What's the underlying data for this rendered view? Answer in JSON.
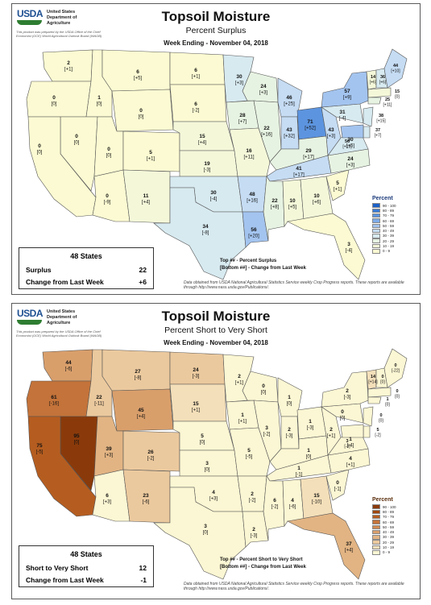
{
  "agency": {
    "logo_text": "USDA",
    "name": "United States\nDepartment of\nAgriculture",
    "prepared_by": "This product was prepared by the USDA Office of the Chief Economist (OCE) World Agricultural Outlook Board (WAOB)"
  },
  "panel_surplus": {
    "title": "Topsoil Moisture",
    "subtitle": "Percent Surplus",
    "week": "Week Ending - November 04, 2018",
    "summary": {
      "heading": "48 States",
      "row1_label": "Surplus",
      "row1_value": "22",
      "row2_label": "Change from Last Week",
      "row2_value": "+6"
    },
    "key_top": "Top ## - Percent Surplus",
    "key_bottom": "[Bottom ##] - Change from Last Week",
    "credit": "Data obtained from USDA National Agricultural Statistics Service weekly Crop Progress reports. These reports are available through http://www.nass.usda.gov/Publications/.",
    "legend_title": "Percent",
    "legend": [
      {
        "label": "90 - 100",
        "color": "#1e62c8"
      },
      {
        "label": "80 - 89",
        "color": "#3a7bd5"
      },
      {
        "label": "70 - 79",
        "color": "#5c94df"
      },
      {
        "label": "60 - 69",
        "color": "#7eabe7"
      },
      {
        "label": "50 - 59",
        "color": "#a3c4ef"
      },
      {
        "label": "40 - 49",
        "color": "#c5dcf3"
      },
      {
        "label": "30 - 39",
        "color": "#d7eaf0"
      },
      {
        "label": "20 - 29",
        "color": "#e7f3e2"
      },
      {
        "label": "10 - 19",
        "color": "#f4f8d9"
      },
      {
        "label": "0 - 9",
        "color": "#fbfad2"
      }
    ],
    "states": [
      {
        "id": "WA",
        "v": "2",
        "c": "[+1]"
      },
      {
        "id": "OR",
        "v": "0",
        "c": "[0]"
      },
      {
        "id": "ID",
        "v": "1",
        "c": "[0]"
      },
      {
        "id": "MT",
        "v": "6",
        "c": "[+5]"
      },
      {
        "id": "ND",
        "v": "6",
        "c": "[+1]"
      },
      {
        "id": "SD",
        "v": "6",
        "c": "[-2]"
      },
      {
        "id": "WY",
        "v": "0",
        "c": "[0]"
      },
      {
        "id": "NV",
        "v": "0",
        "c": "[0]"
      },
      {
        "id": "CA",
        "v": "0",
        "c": "[0]"
      },
      {
        "id": "UT",
        "v": "0",
        "c": "[0]"
      },
      {
        "id": "CO",
        "v": "5",
        "c": "[+1]"
      },
      {
        "id": "AZ",
        "v": "0",
        "c": "[-9]"
      },
      {
        "id": "NM",
        "v": "11",
        "c": "[+4]"
      },
      {
        "id": "NE",
        "v": "15",
        "c": "[+4]"
      },
      {
        "id": "KS",
        "v": "19",
        "c": "[-3]"
      },
      {
        "id": "OK",
        "v": "30",
        "c": "[-4]"
      },
      {
        "id": "TX",
        "v": "34",
        "c": "[-8]"
      },
      {
        "id": "MN",
        "v": "30",
        "c": "[+3]"
      },
      {
        "id": "IA",
        "v": "28",
        "c": "[+7]"
      },
      {
        "id": "MO",
        "v": "16",
        "c": "[+11]"
      },
      {
        "id": "AR",
        "v": "48",
        "c": "[+16]"
      },
      {
        "id": "LA",
        "v": "56",
        "c": "[+20]"
      },
      {
        "id": "WI",
        "v": "24",
        "c": "[+3]"
      },
      {
        "id": "IL",
        "v": "22",
        "c": "[+16]"
      },
      {
        "id": "MI",
        "v": "46",
        "c": "[+25]"
      },
      {
        "id": "IN",
        "v": "43",
        "c": "[+32]"
      },
      {
        "id": "OH",
        "v": "71",
        "c": "[+52]"
      },
      {
        "id": "KY",
        "v": "29",
        "c": "[+17]"
      },
      {
        "id": "TN",
        "v": "41",
        "c": "[+17]"
      },
      {
        "id": "MS",
        "v": "22",
        "c": "[+8]"
      },
      {
        "id": "AL",
        "v": "10",
        "c": "[+5]"
      },
      {
        "id": "GA",
        "v": "10",
        "c": "[+6]"
      },
      {
        "id": "FL",
        "v": "3",
        "c": "[-4]"
      },
      {
        "id": "SC",
        "v": "5",
        "c": "[+1]"
      },
      {
        "id": "NC",
        "v": "24",
        "c": "[+3]"
      },
      {
        "id": "VA",
        "v": "30",
        "c": "[+5]"
      },
      {
        "id": "WV",
        "v": "43",
        "c": "[+3]"
      },
      {
        "id": "PA",
        "v": "31",
        "c": "[-4]"
      },
      {
        "id": "NY",
        "v": "57",
        "c": "[+9]"
      },
      {
        "id": "VT",
        "v": "14",
        "c": "[+6]"
      },
      {
        "id": "NH",
        "v": "36",
        "c": "[+6]"
      },
      {
        "id": "ME",
        "v": "44",
        "c": "[+10]"
      },
      {
        "id": "MA",
        "v": "15",
        "c": "[0]"
      },
      {
        "id": "CT",
        "v": "25",
        "c": "[+11]"
      },
      {
        "id": "NJ",
        "v": "38",
        "c": "[+15]"
      },
      {
        "id": "DE",
        "v": "37",
        "c": "[+7]"
      },
      {
        "id": "MD",
        "v": "56",
        "c": "[+13]"
      }
    ]
  },
  "panel_short": {
    "title": "Topsoil Moisture",
    "subtitle": "Percent Short to Very Short",
    "week": "Week Ending - November 04, 2018",
    "summary": {
      "heading": "48 States",
      "row1_label": "Short to Very Short",
      "row1_value": "12",
      "row2_label": "Change from Last Week",
      "row2_value": "-1"
    },
    "key_top": "Top ## - Percent Short to Very Short",
    "key_bottom": "[Bottom ##] - Change from Last Week",
    "credit": "Data obtained from USDA National Agricultural Statistics Service weekly Crop Progress reports. These reports are available through http://www.nass.usda.gov/Publications/.",
    "legend_title": "Percent",
    "legend": [
      {
        "label": "90 - 100",
        "color": "#8a3a0a"
      },
      {
        "label": "80 - 89",
        "color": "#a1480f"
      },
      {
        "label": "70 - 79",
        "color": "#b55d20"
      },
      {
        "label": "60 - 69",
        "color": "#c4733a"
      },
      {
        "label": "50 - 59",
        "color": "#cf8a52"
      },
      {
        "label": "40 - 49",
        "color": "#d99f6b"
      },
      {
        "label": "30 - 39",
        "color": "#e2b483"
      },
      {
        "label": "20 - 29",
        "color": "#ebc99e"
      },
      {
        "label": "10 - 19",
        "color": "#f3dfb9"
      },
      {
        "label": "0 - 9",
        "color": "#fbf6d3"
      }
    ],
    "states": [
      {
        "id": "WA",
        "v": "44",
        "c": "[-6]"
      },
      {
        "id": "OR",
        "v": "61",
        "c": "[-16]"
      },
      {
        "id": "ID",
        "v": "22",
        "c": "[-11]"
      },
      {
        "id": "MT",
        "v": "27",
        "c": "[-8]"
      },
      {
        "id": "ND",
        "v": "24",
        "c": "[-3]"
      },
      {
        "id": "SD",
        "v": "15",
        "c": "[+1]"
      },
      {
        "id": "WY",
        "v": "45",
        "c": "[+4]"
      },
      {
        "id": "NV",
        "v": "95",
        "c": "[0]"
      },
      {
        "id": "CA",
        "v": "75",
        "c": "[-5]"
      },
      {
        "id": "UT",
        "v": "39",
        "c": "[+3]"
      },
      {
        "id": "CO",
        "v": "26",
        "c": "[-2]"
      },
      {
        "id": "AZ",
        "v": "6",
        "c": "[+3]"
      },
      {
        "id": "NM",
        "v": "23",
        "c": "[-6]"
      },
      {
        "id": "NE",
        "v": "5",
        "c": "[0]"
      },
      {
        "id": "KS",
        "v": "3",
        "c": "[0]"
      },
      {
        "id": "OK",
        "v": "4",
        "c": "[+3]"
      },
      {
        "id": "TX",
        "v": "3",
        "c": "[0]"
      },
      {
        "id": "MN",
        "v": "2",
        "c": "[+1]"
      },
      {
        "id": "IA",
        "v": "1",
        "c": "[+1]"
      },
      {
        "id": "MO",
        "v": "5",
        "c": "[-5]"
      },
      {
        "id": "AR",
        "v": "2",
        "c": "[-2]"
      },
      {
        "id": "LA",
        "v": "2",
        "c": "[-3]"
      },
      {
        "id": "WI",
        "v": "0",
        "c": "[0]"
      },
      {
        "id": "IL",
        "v": "3",
        "c": "[-2]"
      },
      {
        "id": "MI",
        "v": "1",
        "c": "[0]"
      },
      {
        "id": "IN",
        "v": "2",
        "c": "[-3]"
      },
      {
        "id": "OH",
        "v": "1",
        "c": "[-3]"
      },
      {
        "id": "KY",
        "v": "1",
        "c": "[0]"
      },
      {
        "id": "TN",
        "v": "1",
        "c": "[-1]"
      },
      {
        "id": "MS",
        "v": "6",
        "c": "[-2]"
      },
      {
        "id": "AL",
        "v": "4",
        "c": "[-6]"
      },
      {
        "id": "GA",
        "v": "15",
        "c": "[-10]"
      },
      {
        "id": "FL",
        "v": "37",
        "c": "[+4]"
      },
      {
        "id": "SC",
        "v": "0",
        "c": "[-1]"
      },
      {
        "id": "NC",
        "v": "4",
        "c": "[+1]"
      },
      {
        "id": "VA",
        "v": "1",
        "c": "[-4]"
      },
      {
        "id": "WV",
        "v": "2",
        "c": "[+1]"
      },
      {
        "id": "PA",
        "v": "0",
        "c": "[0]"
      },
      {
        "id": "NY",
        "v": "2",
        "c": "[-3]"
      },
      {
        "id": "VT",
        "v": "14",
        "c": "[+14]"
      },
      {
        "id": "NH",
        "v": "0",
        "c": "[0]"
      },
      {
        "id": "ME",
        "v": "0",
        "c": "[-22]"
      },
      {
        "id": "MA",
        "v": "0",
        "c": "[0]"
      },
      {
        "id": "CT",
        "v": "1",
        "c": "[0]"
      },
      {
        "id": "NJ",
        "v": "0",
        "c": "[0]"
      },
      {
        "id": "DE",
        "v": "5",
        "c": "[-2]"
      },
      {
        "id": "MD",
        "v": "3",
        "c": "[-3]"
      }
    ]
  }
}
